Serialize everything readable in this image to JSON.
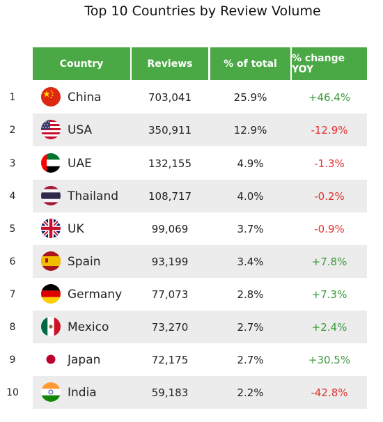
{
  "chart_data": {
    "type": "table",
    "title": "Top 10 Countries by Review Volume",
    "columns": [
      "Country",
      "Reviews",
      "% of total",
      "% change YOY"
    ],
    "rows": [
      {
        "rank": "1",
        "country": "China",
        "flag": "china-flag-icon",
        "reviews": "703,041",
        "pct": "25.9%",
        "yoy": "+46.4%",
        "dir": "pos"
      },
      {
        "rank": "2",
        "country": "USA",
        "flag": "usa-flag-icon",
        "reviews": "350,911",
        "pct": "12.9%",
        "yoy": "-12.9%",
        "dir": "neg"
      },
      {
        "rank": "3",
        "country": "UAE",
        "flag": "uae-flag-icon",
        "reviews": "132,155",
        "pct": "4.9%",
        "yoy": "-1.3%",
        "dir": "neg"
      },
      {
        "rank": "4",
        "country": "Thailand",
        "flag": "thailand-flag-icon",
        "reviews": "108,717",
        "pct": "4.0%",
        "yoy": "-0.2%",
        "dir": "neg"
      },
      {
        "rank": "5",
        "country": "UK",
        "flag": "uk-flag-icon",
        "reviews": "99,069",
        "pct": "3.7%",
        "yoy": "-0.9%",
        "dir": "neg"
      },
      {
        "rank": "6",
        "country": "Spain",
        "flag": "spain-flag-icon",
        "reviews": "93,199",
        "pct": "3.4%",
        "yoy": "+7.8%",
        "dir": "pos"
      },
      {
        "rank": "7",
        "country": "Germany",
        "flag": "germany-flag-icon",
        "reviews": "77,073",
        "pct": "2.8%",
        "yoy": "+7.3%",
        "dir": "pos"
      },
      {
        "rank": "8",
        "country": "Mexico",
        "flag": "mexico-flag-icon",
        "reviews": "73,270",
        "pct": "2.7%",
        "yoy": "+2.4%",
        "dir": "pos"
      },
      {
        "rank": "9",
        "country": "Japan",
        "flag": "japan-flag-icon",
        "reviews": "72,175",
        "pct": "2.7%",
        "yoy": "+30.5%",
        "dir": "pos"
      },
      {
        "rank": "10",
        "country": "India",
        "flag": "india-flag-icon",
        "reviews": "59,183",
        "pct": "2.2%",
        "yoy": "-42.8%",
        "dir": "neg"
      }
    ]
  },
  "colors": {
    "header": "#4aa845",
    "stripe": "#ececec",
    "positive": "#3a9a3a",
    "negative": "#e03030"
  }
}
